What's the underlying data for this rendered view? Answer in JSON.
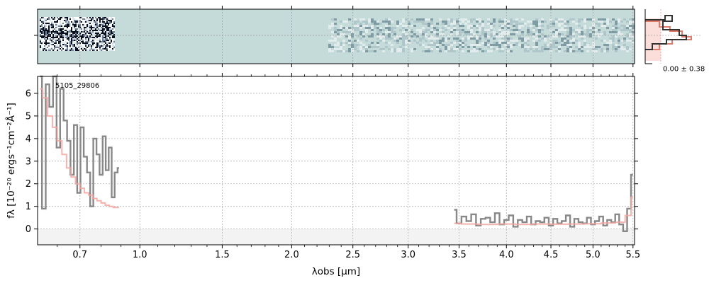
{
  "chart_data": {
    "type": "line",
    "object_label": "5105_29806",
    "xlabel": "λobs [μm]",
    "ylabel": "fλ [10⁻²⁰ ergs⁻¹cm⁻²Å⁻¹]",
    "x_scale": "sqrt",
    "xlim": [
      0.52,
      5.52
    ],
    "ylim": [
      -0.7,
      6.75
    ],
    "x_ticks": [
      0.7,
      1.0,
      1.5,
      2.0,
      2.5,
      3.0,
      3.5,
      4.0,
      4.5,
      5.0,
      5.5
    ],
    "x_tick_labels": [
      "0.7",
      "1.0",
      "1.5",
      "2.0",
      "2.5",
      "3.0",
      "3.5",
      "4.0",
      "4.5",
      "5.0",
      "5.5"
    ],
    "y_ticks": [
      0,
      1,
      2,
      3,
      4,
      5,
      6
    ],
    "y_tick_labels": [
      "0",
      "1",
      "2",
      "3",
      "4",
      "5",
      "6"
    ],
    "grid": true,
    "colors": {
      "data": "#888888",
      "model": "#f4a6a0",
      "spec2d_bg": "#c5dbda",
      "histogram": "#333333",
      "histogram_fill": "#f8c8c0"
    },
    "histogram_label": "0.00 ± 0.38",
    "series": [
      {
        "role": "prism-data",
        "x": [
          0.53,
          0.545,
          0.56,
          0.575,
          0.59,
          0.605,
          0.62,
          0.635,
          0.65,
          0.665,
          0.68,
          0.695,
          0.71,
          0.725,
          0.74,
          0.755,
          0.77,
          0.785,
          0.8,
          0.815,
          0.83,
          0.845,
          0.86,
          0.875,
          0.89
        ],
        "y": [
          6.8,
          0.9,
          6.4,
          5.4,
          6.8,
          3.6,
          6.2,
          4.8,
          3.9,
          2.4,
          4.6,
          1.6,
          4.5,
          3.2,
          2.5,
          1.0,
          4.0,
          3.3,
          2.4,
          4.1,
          2.6,
          3.6,
          1.4,
          2.5,
          2.7
        ]
      },
      {
        "role": "prism-model",
        "x": [
          0.53,
          0.55,
          0.57,
          0.59,
          0.61,
          0.63,
          0.65,
          0.67,
          0.69,
          0.71,
          0.73,
          0.75,
          0.77,
          0.79,
          0.81,
          0.83,
          0.85,
          0.87,
          0.89
        ],
        "y": [
          6.2,
          5.8,
          5.0,
          4.5,
          3.9,
          3.3,
          2.7,
          2.3,
          2.0,
          1.8,
          1.6,
          1.5,
          1.35,
          1.25,
          1.15,
          1.05,
          1.0,
          0.95,
          0.95
        ]
      },
      {
        "role": "grism-data",
        "x": [
          3.45,
          3.5,
          3.55,
          3.6,
          3.65,
          3.7,
          3.75,
          3.8,
          3.85,
          3.9,
          3.95,
          4.0,
          4.05,
          4.1,
          4.15,
          4.2,
          4.25,
          4.3,
          4.35,
          4.4,
          4.45,
          4.5,
          4.55,
          4.6,
          4.65,
          4.7,
          4.75,
          4.8,
          4.85,
          4.9,
          4.95,
          5.0,
          5.05,
          5.1,
          5.15,
          5.2,
          5.25,
          5.3,
          5.35,
          5.4,
          5.45,
          5.5
        ],
        "y": [
          0.85,
          0.25,
          0.55,
          0.35,
          0.65,
          0.15,
          0.45,
          0.5,
          0.3,
          0.7,
          0.2,
          0.4,
          0.6,
          0.1,
          0.4,
          0.3,
          0.55,
          0.2,
          0.35,
          0.3,
          0.5,
          0.15,
          0.45,
          0.25,
          0.35,
          0.6,
          0.1,
          0.45,
          0.3,
          0.25,
          0.5,
          0.2,
          0.35,
          0.55,
          0.15,
          0.4,
          0.3,
          0.65,
          0.2,
          -0.1,
          0.9,
          2.4
        ]
      },
      {
        "role": "grism-model",
        "x": [
          3.45,
          3.6,
          3.8,
          4.0,
          4.2,
          4.4,
          4.6,
          4.8,
          5.0,
          5.2,
          5.35,
          5.45,
          5.5
        ],
        "y": [
          0.25,
          0.22,
          0.2,
          0.22,
          0.2,
          0.22,
          0.21,
          0.22,
          0.23,
          0.26,
          0.3,
          0.6,
          1.4
        ]
      }
    ]
  }
}
